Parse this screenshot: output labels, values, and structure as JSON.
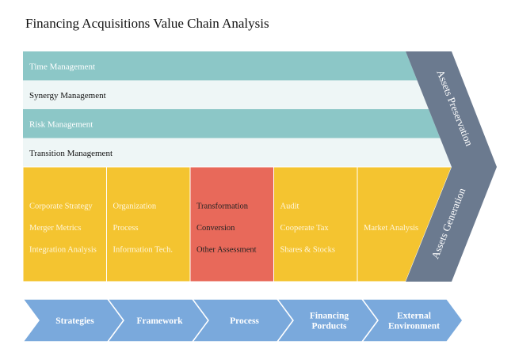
{
  "title": "Financing Acquisitions Value Chain Analysis",
  "rows": [
    {
      "label": "Time Management",
      "fill": "#8cc7c7",
      "text_color": "#ffffff"
    },
    {
      "label": "Synergy Management",
      "fill": "#eef6f6",
      "text_color": "#111111"
    },
    {
      "label": "Risk Management",
      "fill": "#8cc7c7",
      "text_color": "#ffffff"
    },
    {
      "label": "Transition Management",
      "fill": "#eef6f6",
      "text_color": "#111111"
    }
  ],
  "columns": [
    {
      "items": [
        "Corporate Strategy",
        "Merger Metrics",
        "Integration Analysis"
      ],
      "fill": "#f4c430",
      "text_color": "#fff6dc"
    },
    {
      "items": [
        "Organization",
        "Process",
        "Information Tech."
      ],
      "fill": "#f4c430",
      "text_color": "#fff6dc"
    },
    {
      "items": [
        "Transformation",
        "Conversion",
        "Other Assessment"
      ],
      "fill": "#e8695a",
      "text_color": "#222222"
    },
    {
      "items": [
        "Audit",
        "Cooperate Tax",
        "Shares & Stocks"
      ],
      "fill": "#f4c430",
      "text_color": "#fff6dc"
    },
    {
      "items": [
        "Market Analysis"
      ],
      "fill": "#f4c430",
      "text_color": "#fff6dc"
    }
  ],
  "chevron": {
    "top_label": "Assets Preservation",
    "bottom_label": "Assets Generation",
    "fill": "#6b7a8f"
  },
  "steps": {
    "fill": "#7aa9dc",
    "items": [
      {
        "lines": [
          "Strategies"
        ]
      },
      {
        "lines": [
          "Framework"
        ]
      },
      {
        "lines": [
          "Process"
        ]
      },
      {
        "lines": [
          "Financing",
          "Porducts"
        ]
      },
      {
        "lines": [
          "External",
          "Environment"
        ]
      }
    ]
  }
}
